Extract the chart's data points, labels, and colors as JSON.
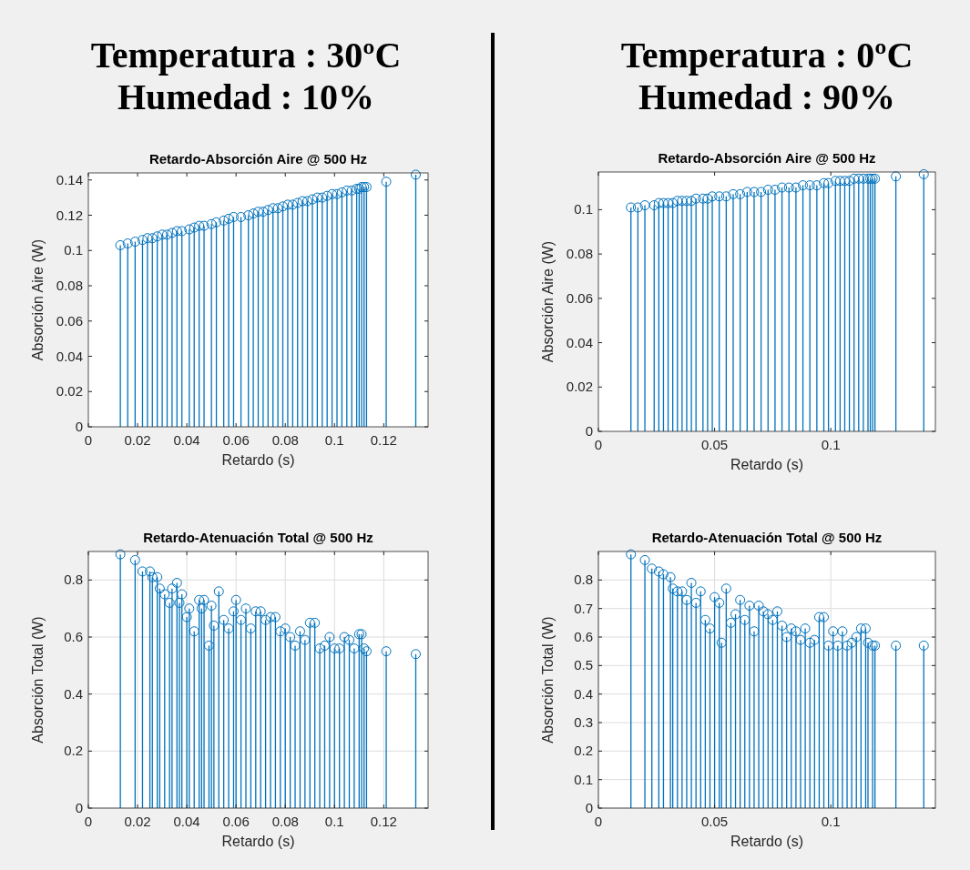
{
  "chart_data": [
    {
      "type": "lollipop",
      "annotations": [
        "Temperatura : 30ºC",
        "Humedad : 10%"
      ],
      "title": "Retardo-Absorción Aire @ 500 Hz",
      "xlabel": "Retardo (s)",
      "ylabel": "Absorción Aire (W)",
      "color": "#0072bd",
      "marker": "circle",
      "grid": false,
      "x": [
        0.013,
        0.016,
        0.019,
        0.022,
        0.024,
        0.026,
        0.028,
        0.03,
        0.032,
        0.034,
        0.036,
        0.038,
        0.041,
        0.043,
        0.045,
        0.047,
        0.05,
        0.052,
        0.055,
        0.057,
        0.059,
        0.062,
        0.065,
        0.067,
        0.069,
        0.071,
        0.073,
        0.075,
        0.077,
        0.079,
        0.081,
        0.083,
        0.085,
        0.087,
        0.089,
        0.091,
        0.093,
        0.095,
        0.097,
        0.099,
        0.101,
        0.103,
        0.105,
        0.107,
        0.109,
        0.11,
        0.111,
        0.112,
        0.113,
        0.121,
        0.133
      ],
      "values": [
        0.103,
        0.104,
        0.105,
        0.106,
        0.107,
        0.107,
        0.108,
        0.109,
        0.109,
        0.11,
        0.111,
        0.111,
        0.112,
        0.113,
        0.114,
        0.114,
        0.115,
        0.116,
        0.117,
        0.118,
        0.119,
        0.119,
        0.12,
        0.121,
        0.122,
        0.122,
        0.123,
        0.124,
        0.124,
        0.125,
        0.126,
        0.126,
        0.127,
        0.128,
        0.128,
        0.129,
        0.13,
        0.13,
        0.131,
        0.132,
        0.132,
        0.133,
        0.134,
        0.134,
        0.135,
        0.135,
        0.136,
        0.136,
        0.136,
        0.139,
        0.143
      ],
      "xlim": [
        0,
        0.138
      ],
      "ylim": [
        0,
        0.144
      ],
      "xticks": [
        0,
        0.02,
        0.04,
        0.06,
        0.08,
        0.1,
        0.12
      ],
      "yticks": [
        0,
        0.02,
        0.04,
        0.06,
        0.08,
        0.1,
        0.12,
        0.14
      ]
    },
    {
      "type": "lollipop",
      "annotations": [
        "Temperatura : 0ºC",
        "Humedad : 90%"
      ],
      "title": "Retardo-Absorción Aire @ 500 Hz",
      "xlabel": "Retardo (s)",
      "ylabel": "Absorción Aire (W)",
      "color": "#0072bd",
      "marker": "circle",
      "grid": false,
      "x": [
        0.014,
        0.017,
        0.02,
        0.024,
        0.026,
        0.028,
        0.03,
        0.032,
        0.034,
        0.036,
        0.038,
        0.04,
        0.042,
        0.045,
        0.047,
        0.049,
        0.052,
        0.055,
        0.058,
        0.061,
        0.064,
        0.067,
        0.07,
        0.073,
        0.076,
        0.079,
        0.082,
        0.085,
        0.088,
        0.091,
        0.094,
        0.097,
        0.099,
        0.102,
        0.104,
        0.106,
        0.108,
        0.11,
        0.112,
        0.114,
        0.116,
        0.117,
        0.118,
        0.119,
        0.128,
        0.14
      ],
      "values": [
        0.101,
        0.101,
        0.102,
        0.102,
        0.103,
        0.103,
        0.103,
        0.103,
        0.104,
        0.104,
        0.104,
        0.104,
        0.105,
        0.105,
        0.105,
        0.106,
        0.106,
        0.106,
        0.107,
        0.107,
        0.108,
        0.108,
        0.108,
        0.109,
        0.109,
        0.11,
        0.11,
        0.11,
        0.111,
        0.111,
        0.111,
        0.112,
        0.112,
        0.113,
        0.113,
        0.113,
        0.113,
        0.114,
        0.114,
        0.114,
        0.114,
        0.114,
        0.114,
        0.114,
        0.115,
        0.116
      ],
      "xlim": [
        0,
        0.145
      ],
      "ylim": [
        0,
        0.117
      ],
      "xticks": [
        0,
        0.05,
        0.1
      ],
      "yticks": [
        0,
        0.02,
        0.04,
        0.06,
        0.08,
        0.1
      ]
    },
    {
      "type": "lollipop",
      "title": "Retardo-Atenuación Total @ 500 Hz",
      "xlabel": "Retardo (s)",
      "ylabel": "Absorción Total (W)",
      "color": "#0072bd",
      "marker": "circle",
      "grid": true,
      "x": [
        0.013,
        0.019,
        0.022,
        0.025,
        0.026,
        0.028,
        0.029,
        0.031,
        0.033,
        0.034,
        0.036,
        0.037,
        0.038,
        0.04,
        0.041,
        0.043,
        0.045,
        0.046,
        0.047,
        0.049,
        0.05,
        0.051,
        0.053,
        0.055,
        0.057,
        0.059,
        0.06,
        0.062,
        0.064,
        0.066,
        0.068,
        0.07,
        0.072,
        0.074,
        0.076,
        0.078,
        0.08,
        0.082,
        0.084,
        0.086,
        0.088,
        0.09,
        0.092,
        0.094,
        0.096,
        0.098,
        0.1,
        0.102,
        0.104,
        0.106,
        0.108,
        0.11,
        0.111,
        0.112,
        0.113,
        0.121,
        0.133
      ],
      "values": [
        0.89,
        0.87,
        0.83,
        0.83,
        0.81,
        0.81,
        0.77,
        0.75,
        0.72,
        0.77,
        0.79,
        0.72,
        0.75,
        0.67,
        0.7,
        0.62,
        0.73,
        0.7,
        0.73,
        0.57,
        0.71,
        0.64,
        0.76,
        0.66,
        0.63,
        0.69,
        0.73,
        0.66,
        0.7,
        0.63,
        0.69,
        0.69,
        0.66,
        0.67,
        0.67,
        0.62,
        0.63,
        0.6,
        0.57,
        0.62,
        0.59,
        0.65,
        0.65,
        0.56,
        0.57,
        0.6,
        0.56,
        0.56,
        0.6,
        0.59,
        0.56,
        0.61,
        0.61,
        0.56,
        0.55,
        0.55,
        0.54
      ],
      "xlim": [
        0,
        0.138
      ],
      "ylim": [
        0,
        0.9
      ],
      "xticks": [
        0,
        0.02,
        0.04,
        0.06,
        0.08,
        0.1,
        0.12
      ],
      "yticks": [
        0,
        0.2,
        0.4,
        0.6,
        0.8
      ]
    },
    {
      "type": "lollipop",
      "title": "Retardo-Atenuación Total @ 500 Hz",
      "xlabel": "Retardo (s)",
      "ylabel": "Absorción Total (W)",
      "color": "#0072bd",
      "marker": "circle",
      "grid": true,
      "x": [
        0.014,
        0.02,
        0.023,
        0.026,
        0.028,
        0.031,
        0.032,
        0.034,
        0.036,
        0.038,
        0.04,
        0.042,
        0.044,
        0.046,
        0.048,
        0.05,
        0.052,
        0.053,
        0.055,
        0.057,
        0.059,
        0.061,
        0.063,
        0.065,
        0.067,
        0.069,
        0.071,
        0.073,
        0.075,
        0.077,
        0.079,
        0.081,
        0.083,
        0.085,
        0.087,
        0.089,
        0.091,
        0.093,
        0.095,
        0.097,
        0.099,
        0.101,
        0.103,
        0.105,
        0.107,
        0.109,
        0.111,
        0.113,
        0.115,
        0.116,
        0.118,
        0.119,
        0.128,
        0.14
      ],
      "values": [
        0.89,
        0.87,
        0.84,
        0.83,
        0.82,
        0.81,
        0.77,
        0.76,
        0.76,
        0.73,
        0.79,
        0.72,
        0.76,
        0.66,
        0.63,
        0.74,
        0.72,
        0.58,
        0.77,
        0.65,
        0.68,
        0.73,
        0.66,
        0.71,
        0.62,
        0.71,
        0.69,
        0.68,
        0.66,
        0.69,
        0.64,
        0.6,
        0.63,
        0.62,
        0.59,
        0.63,
        0.58,
        0.59,
        0.67,
        0.67,
        0.57,
        0.62,
        0.57,
        0.62,
        0.57,
        0.58,
        0.6,
        0.63,
        0.63,
        0.58,
        0.57,
        0.57,
        0.57,
        0.57
      ],
      "xlim": [
        0,
        0.145
      ],
      "ylim": [
        0,
        0.9
      ],
      "xticks": [
        0,
        0.05,
        0.1
      ],
      "yticks": [
        0,
        0.1,
        0.2,
        0.3,
        0.4,
        0.5,
        0.6,
        0.7,
        0.8
      ]
    }
  ]
}
